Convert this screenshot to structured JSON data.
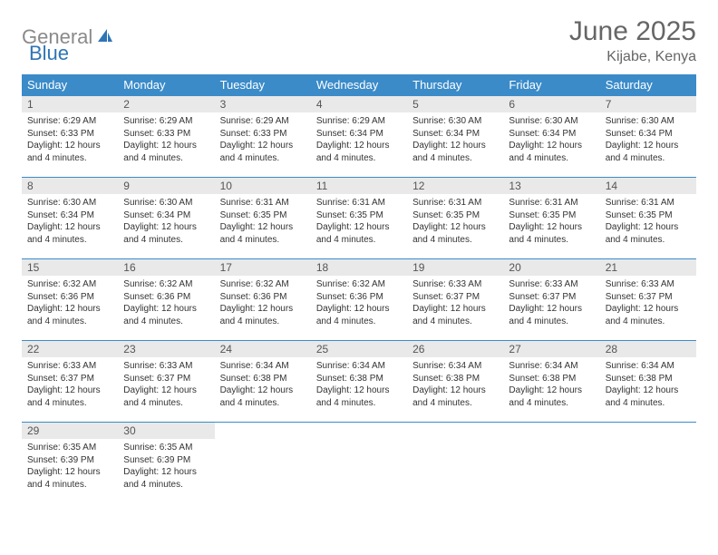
{
  "brand": {
    "part1": "General",
    "part2": "Blue"
  },
  "title": "June 2025",
  "location": "Kijabe, Kenya",
  "colors": {
    "header_bg": "#3b8bc9",
    "header_text": "#ffffff",
    "daynum_bg": "#e9e9e9",
    "border": "#3b8bc9",
    "logo_gray": "#8a8a8a",
    "logo_blue": "#2e75b6"
  },
  "weekdays": [
    "Sunday",
    "Monday",
    "Tuesday",
    "Wednesday",
    "Thursday",
    "Friday",
    "Saturday"
  ],
  "days": [
    {
      "n": "1",
      "sr": "6:29 AM",
      "ss": "6:33 PM",
      "dl": "12 hours and 4 minutes."
    },
    {
      "n": "2",
      "sr": "6:29 AM",
      "ss": "6:33 PM",
      "dl": "12 hours and 4 minutes."
    },
    {
      "n": "3",
      "sr": "6:29 AM",
      "ss": "6:33 PM",
      "dl": "12 hours and 4 minutes."
    },
    {
      "n": "4",
      "sr": "6:29 AM",
      "ss": "6:34 PM",
      "dl": "12 hours and 4 minutes."
    },
    {
      "n": "5",
      "sr": "6:30 AM",
      "ss": "6:34 PM",
      "dl": "12 hours and 4 minutes."
    },
    {
      "n": "6",
      "sr": "6:30 AM",
      "ss": "6:34 PM",
      "dl": "12 hours and 4 minutes."
    },
    {
      "n": "7",
      "sr": "6:30 AM",
      "ss": "6:34 PM",
      "dl": "12 hours and 4 minutes."
    },
    {
      "n": "8",
      "sr": "6:30 AM",
      "ss": "6:34 PM",
      "dl": "12 hours and 4 minutes."
    },
    {
      "n": "9",
      "sr": "6:30 AM",
      "ss": "6:34 PM",
      "dl": "12 hours and 4 minutes."
    },
    {
      "n": "10",
      "sr": "6:31 AM",
      "ss": "6:35 PM",
      "dl": "12 hours and 4 minutes."
    },
    {
      "n": "11",
      "sr": "6:31 AM",
      "ss": "6:35 PM",
      "dl": "12 hours and 4 minutes."
    },
    {
      "n": "12",
      "sr": "6:31 AM",
      "ss": "6:35 PM",
      "dl": "12 hours and 4 minutes."
    },
    {
      "n": "13",
      "sr": "6:31 AM",
      "ss": "6:35 PM",
      "dl": "12 hours and 4 minutes."
    },
    {
      "n": "14",
      "sr": "6:31 AM",
      "ss": "6:35 PM",
      "dl": "12 hours and 4 minutes."
    },
    {
      "n": "15",
      "sr": "6:32 AM",
      "ss": "6:36 PM",
      "dl": "12 hours and 4 minutes."
    },
    {
      "n": "16",
      "sr": "6:32 AM",
      "ss": "6:36 PM",
      "dl": "12 hours and 4 minutes."
    },
    {
      "n": "17",
      "sr": "6:32 AM",
      "ss": "6:36 PM",
      "dl": "12 hours and 4 minutes."
    },
    {
      "n": "18",
      "sr": "6:32 AM",
      "ss": "6:36 PM",
      "dl": "12 hours and 4 minutes."
    },
    {
      "n": "19",
      "sr": "6:33 AM",
      "ss": "6:37 PM",
      "dl": "12 hours and 4 minutes."
    },
    {
      "n": "20",
      "sr": "6:33 AM",
      "ss": "6:37 PM",
      "dl": "12 hours and 4 minutes."
    },
    {
      "n": "21",
      "sr": "6:33 AM",
      "ss": "6:37 PM",
      "dl": "12 hours and 4 minutes."
    },
    {
      "n": "22",
      "sr": "6:33 AM",
      "ss": "6:37 PM",
      "dl": "12 hours and 4 minutes."
    },
    {
      "n": "23",
      "sr": "6:33 AM",
      "ss": "6:37 PM",
      "dl": "12 hours and 4 minutes."
    },
    {
      "n": "24",
      "sr": "6:34 AM",
      "ss": "6:38 PM",
      "dl": "12 hours and 4 minutes."
    },
    {
      "n": "25",
      "sr": "6:34 AM",
      "ss": "6:38 PM",
      "dl": "12 hours and 4 minutes."
    },
    {
      "n": "26",
      "sr": "6:34 AM",
      "ss": "6:38 PM",
      "dl": "12 hours and 4 minutes."
    },
    {
      "n": "27",
      "sr": "6:34 AM",
      "ss": "6:38 PM",
      "dl": "12 hours and 4 minutes."
    },
    {
      "n": "28",
      "sr": "6:34 AM",
      "ss": "6:38 PM",
      "dl": "12 hours and 4 minutes."
    },
    {
      "n": "29",
      "sr": "6:35 AM",
      "ss": "6:39 PM",
      "dl": "12 hours and 4 minutes."
    },
    {
      "n": "30",
      "sr": "6:35 AM",
      "ss": "6:39 PM",
      "dl": "12 hours and 4 minutes."
    }
  ],
  "labels": {
    "sunrise": "Sunrise:",
    "sunset": "Sunset:",
    "daylight": "Daylight:"
  }
}
